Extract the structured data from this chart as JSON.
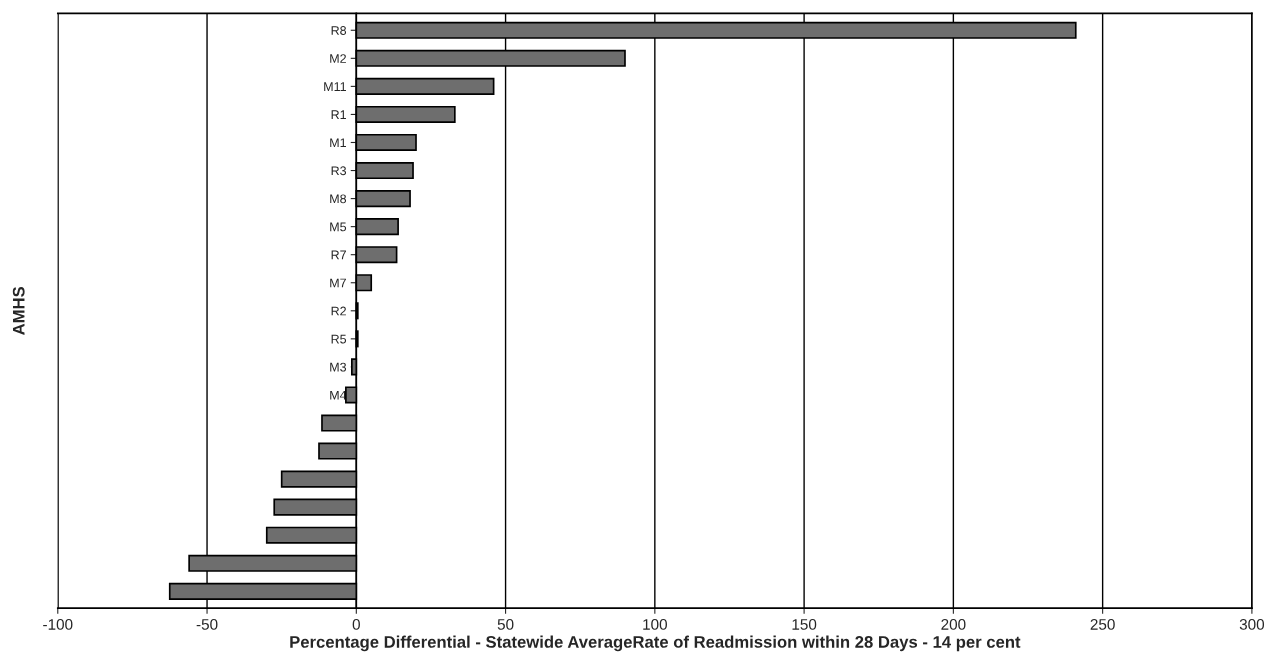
{
  "chart_data": {
    "type": "bar",
    "orientation": "horizontal",
    "xlabel": "Percentage Differential - Statewide AverageRate of Readmission within 28 Days - 14 per cent",
    "ylabel": "AMHS",
    "categories": [
      "R8",
      "M2",
      "M11",
      "R1",
      "M1",
      "R3",
      "M8",
      "M5",
      "R7",
      "M7",
      "R2",
      "R5",
      "M3",
      "M4",
      null,
      null,
      null,
      null,
      null,
      null,
      null
    ],
    "values": [
      241,
      90,
      46,
      33,
      20,
      19,
      18,
      14,
      13.5,
      5,
      0.5,
      0.5,
      -1.5,
      -3.5,
      -11.5,
      -12.5,
      -25,
      -27.5,
      -30,
      -56,
      -62.5
    ],
    "color": "#6e6e6e",
    "xlim": [
      -100,
      300
    ],
    "xticks": [
      -100,
      -50,
      0,
      50,
      100,
      150,
      200,
      250,
      300
    ],
    "grid": "x"
  }
}
